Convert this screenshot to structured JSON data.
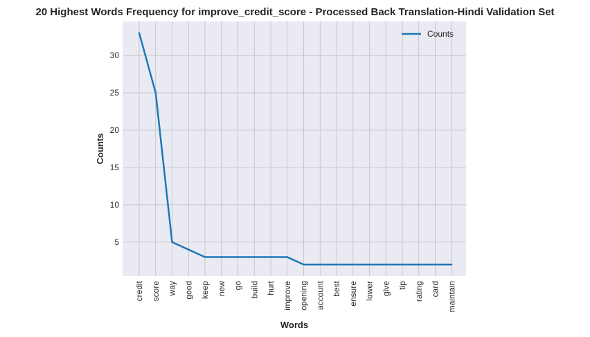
{
  "chart_data": {
    "type": "line",
    "title": "20 Highest Words Frequency for improve_credit_score - Processed Back Translation-Hindi Validation Set",
    "xlabel": "Words",
    "ylabel": "Counts",
    "categories": [
      "credit",
      "score",
      "way",
      "good",
      "keep",
      "new",
      "go",
      "build",
      "hurt",
      "improve",
      "opening",
      "account",
      "best",
      "ensure",
      "lower",
      "give",
      "tip",
      "rating",
      "card",
      "maintain"
    ],
    "series": [
      {
        "name": "Counts",
        "values": [
          33,
          25,
          5,
          4,
          3,
          3,
          3,
          3,
          3,
          3,
          2,
          2,
          2,
          2,
          2,
          2,
          2,
          2,
          2,
          2
        ],
        "color": "#1f77b4"
      }
    ],
    "yticks": [
      5,
      10,
      15,
      20,
      25,
      30
    ],
    "ylim": [
      0.45,
      34.55
    ],
    "grid": true,
    "legend_position": "top-right",
    "background": "#eaeaf2",
    "grid_color": "#c0c0c0"
  }
}
